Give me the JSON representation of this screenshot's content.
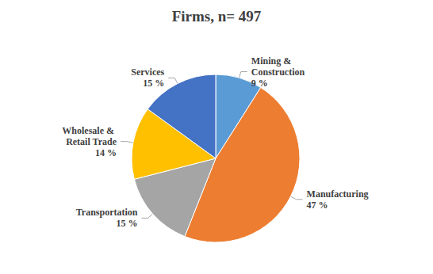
{
  "chart_data": {
    "type": "pie",
    "title": "Firms, n= 497",
    "categories": [
      "Mining & Construction",
      "Manufacturing",
      "Transportation",
      "Wholesale & Retail Trade",
      "Services"
    ],
    "values": [
      9,
      47,
      15,
      14,
      15
    ],
    "value_labels": [
      "9 %",
      "47 %",
      "15 %",
      "14 %",
      "15 %"
    ],
    "colors": [
      "#5b9bd5",
      "#ed7d31",
      "#a5a5a5",
      "#ffc000",
      "#4472c4"
    ],
    "data_labels": true
  }
}
